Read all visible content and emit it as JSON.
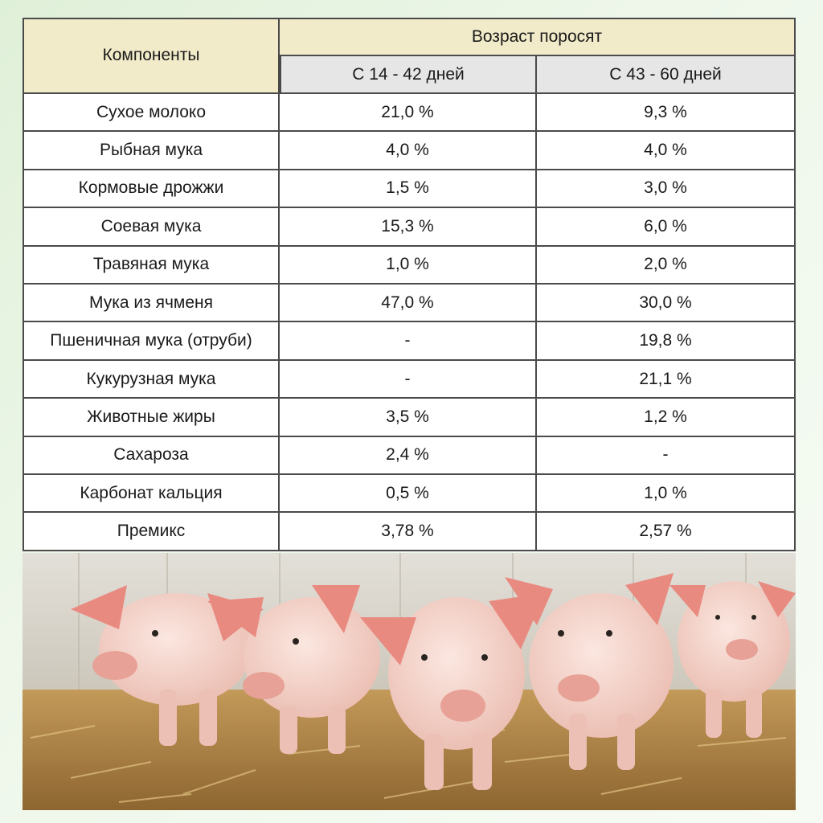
{
  "table": {
    "header_components": "Компоненты",
    "header_age": "Возраст поросят",
    "header_period1": "С 14 - 42 дней",
    "header_period2": "С 43 - 60 дней",
    "rows": [
      {
        "component": "Сухое молоко",
        "p1": "21,0 %",
        "p2": "9,3 %"
      },
      {
        "component": "Рыбная мука",
        "p1": "4,0 %",
        "p2": "4,0 %"
      },
      {
        "component": "Кормовые дрожжи",
        "p1": "1,5 %",
        "p2": "3,0 %"
      },
      {
        "component": "Соевая мука",
        "p1": "15,3 %",
        "p2": "6,0 %"
      },
      {
        "component": "Травяная мука",
        "p1": "1,0 %",
        "p2": "2,0 %"
      },
      {
        "component": "Мука из ячменя",
        "p1": "47,0 %",
        "p2": "30,0 %"
      },
      {
        "component": "Пшеничная мука (отруби)",
        "p1": "-",
        "p2": "19,8 %"
      },
      {
        "component": "Кукурузная мука",
        "p1": "-",
        "p2": "21,1 %"
      },
      {
        "component": "Животные жиры",
        "p1": "3,5 %",
        "p2": "1,2 %"
      },
      {
        "component": "Сахароза",
        "p1": "2,4 %",
        "p2": "-"
      },
      {
        "component": "Карбонат кальция",
        "p1": "0,5 %",
        "p2": "1,0 %"
      },
      {
        "component": "Премикс",
        "p1": "3,78 %",
        "p2": "2,57 %"
      }
    ]
  },
  "colors": {
    "header_bg": "#f2ebc9",
    "subheader_bg": "#e6e6e6",
    "border": "#4a4a4a",
    "page_bg": "#dff0d8"
  }
}
